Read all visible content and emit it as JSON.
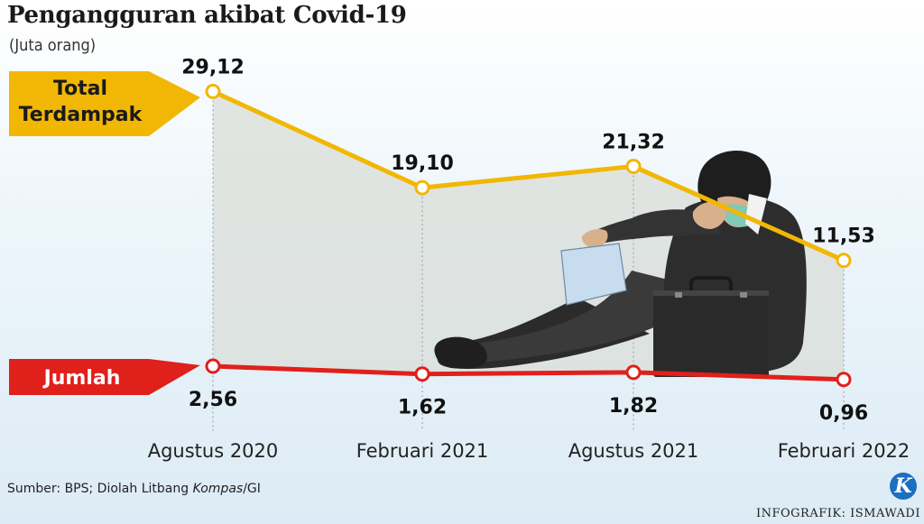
{
  "header": {
    "title": "Pengangguran akibat Covid-19",
    "subtitle": "(Juta orang)"
  },
  "footer": {
    "source_prefix": "Sumber: BPS; Diolah Litbang ",
    "source_italic": "Kompas",
    "source_suffix": "/GI",
    "credit": "INFOGRAFIK: ISMAWADI",
    "logo_letter": "K"
  },
  "colors": {
    "total_line": "#f2b705",
    "jumlah_line": "#e0201b",
    "area_fill": "#d9ddd8",
    "jumlah_label_text": "#ffffff",
    "total_label_text": "#1a1a1a"
  },
  "chart_data": {
    "type": "line",
    "title": "Pengangguran akibat Covid-19",
    "ylabel": "(Juta orang)",
    "categories": [
      "Agustus 2020",
      "Februari 2021",
      "Agustus 2021",
      "Februari 2022"
    ],
    "series": [
      {
        "name": "Total Terdampak",
        "name_lines": [
          "Total",
          "Terdampak"
        ],
        "values": [
          29.12,
          19.1,
          21.32,
          11.53
        ],
        "labels": [
          "29,12",
          "19,10",
          "21,32",
          "11,53"
        ],
        "color": "#f2b705"
      },
      {
        "name": "Jumlah",
        "name_lines": [
          "Jumlah"
        ],
        "values": [
          2.56,
          1.62,
          1.82,
          0.96
        ],
        "labels": [
          "2,56",
          "1,62",
          "1,82",
          "0,96"
        ],
        "color": "#e0201b"
      }
    ],
    "ylim": [
      0,
      30
    ],
    "area_between_series": true,
    "grid": false,
    "legend": "left"
  },
  "illustration": {
    "description_icon": "sitting-masked-worker-illustration"
  }
}
